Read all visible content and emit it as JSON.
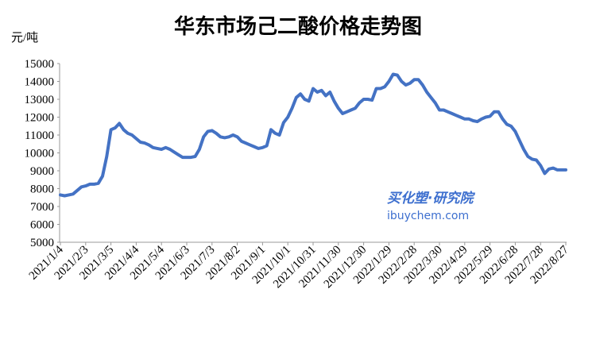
{
  "chart_data": {
    "type": "line",
    "title": "华东市场己二酸价格走势图",
    "y_unit": "元/吨",
    "annotations": [
      "买化塑·研究院",
      "ibuychem.com"
    ],
    "color": "#4472c4",
    "ylim": [
      5000,
      15000
    ],
    "yticks": [
      5000,
      6000,
      7000,
      8000,
      9000,
      10000,
      11000,
      12000,
      13000,
      14000,
      15000
    ],
    "categories": [
      "2021/1/4",
      null,
      null,
      null,
      null,
      null,
      "2021/2/3",
      null,
      null,
      null,
      null,
      null,
      "2021/3/5",
      null,
      null,
      null,
      null,
      null,
      "2021/4/4",
      null,
      null,
      null,
      null,
      null,
      "2021/5/4",
      null,
      null,
      null,
      null,
      null,
      "2021/6/3",
      null,
      null,
      null,
      null,
      null,
      "2021/7/3",
      null,
      null,
      null,
      null,
      null,
      "2021/8/2",
      null,
      null,
      null,
      null,
      null,
      "2021/9/1",
      null,
      null,
      null,
      null,
      null,
      "2021/10/1",
      null,
      null,
      null,
      null,
      null,
      "2021/10/31",
      null,
      null,
      null,
      null,
      null,
      "2021/11/30",
      null,
      null,
      null,
      null,
      null,
      "2021/12/30",
      null,
      null,
      null,
      null,
      null,
      "2022/1/29",
      null,
      null,
      null,
      null,
      null,
      "2022/2/28",
      null,
      null,
      null,
      null,
      null,
      "2022/3/30",
      null,
      null,
      null,
      null,
      null,
      "2022/4/29",
      null,
      null,
      null,
      null,
      null,
      "2022/5/29",
      null,
      null,
      null,
      null,
      null,
      "2022/6/28",
      null,
      null,
      null,
      null,
      null,
      "2022/7/28",
      null,
      null,
      null,
      null,
      null,
      "2022/8/27"
    ],
    "values": [
      7650,
      7600,
      7650,
      7700,
      7900,
      8100,
      8150,
      8250,
      8250,
      8300,
      8700,
      9800,
      11300,
      11400,
      11650,
      11300,
      11100,
      11000,
      10800,
      10600,
      10550,
      10450,
      10300,
      10250,
      10200,
      10300,
      10200,
      10050,
      9900,
      9750,
      9750,
      9750,
      9800,
      10200,
      10900,
      11200,
      11250,
      11100,
      10900,
      10850,
      10900,
      11000,
      10900,
      10650,
      10550,
      10450,
      10350,
      10250,
      10300,
      10400,
      11300,
      11100,
      11000,
      11700,
      12000,
      12500,
      13100,
      13300,
      13000,
      12900,
      13600,
      13400,
      13500,
      13200,
      13400,
      12900,
      12500,
      12200,
      12300,
      12400,
      12500,
      12800,
      13000,
      13000,
      12950,
      13600,
      13600,
      13700,
      14000,
      14400,
      14350,
      14000,
      13800,
      13900,
      14100,
      14100,
      13800,
      13400,
      13100,
      12800,
      12400,
      12400,
      12300,
      12200,
      12100,
      12000,
      11900,
      11900,
      11800,
      11750,
      11900,
      12000,
      12050,
      12300,
      12300,
      11900,
      11600,
      11500,
      11200,
      10700,
      10200,
      9800,
      9650,
      9600,
      9300,
      8850,
      9100,
      9150,
      9050,
      9050,
      9050
    ]
  }
}
